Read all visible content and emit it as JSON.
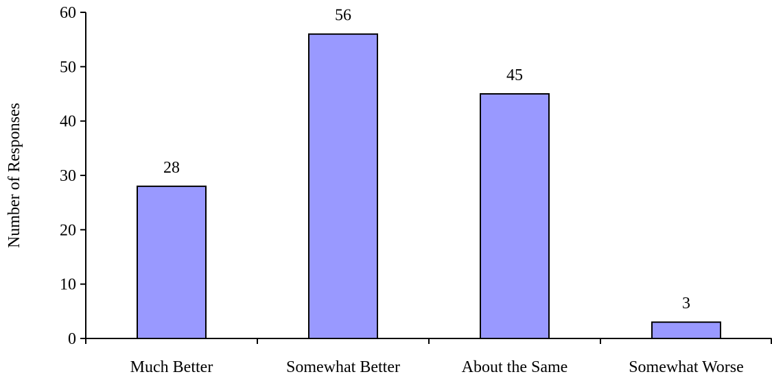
{
  "chart_data": {
    "type": "bar",
    "title": "",
    "xlabel": "",
    "ylabel": "Number of Responses",
    "categories": [
      "Much Better",
      "Somewhat Better",
      "About the Same",
      "Somewhat Worse"
    ],
    "values": [
      28,
      56,
      45,
      3
    ],
    "data_labels": [
      "28",
      "56",
      "45",
      "3"
    ],
    "ylim": [
      0,
      60
    ],
    "yticks": [
      0,
      10,
      20,
      30,
      40,
      50,
      60
    ],
    "ytick_labels": [
      "0",
      "10",
      "20",
      "30",
      "40",
      "50",
      "60"
    ],
    "grid": false,
    "legend": "none",
    "colors": {
      "bar_fill": "#9999ff",
      "bar_stroke": "#000000",
      "axis": "#000000"
    }
  }
}
